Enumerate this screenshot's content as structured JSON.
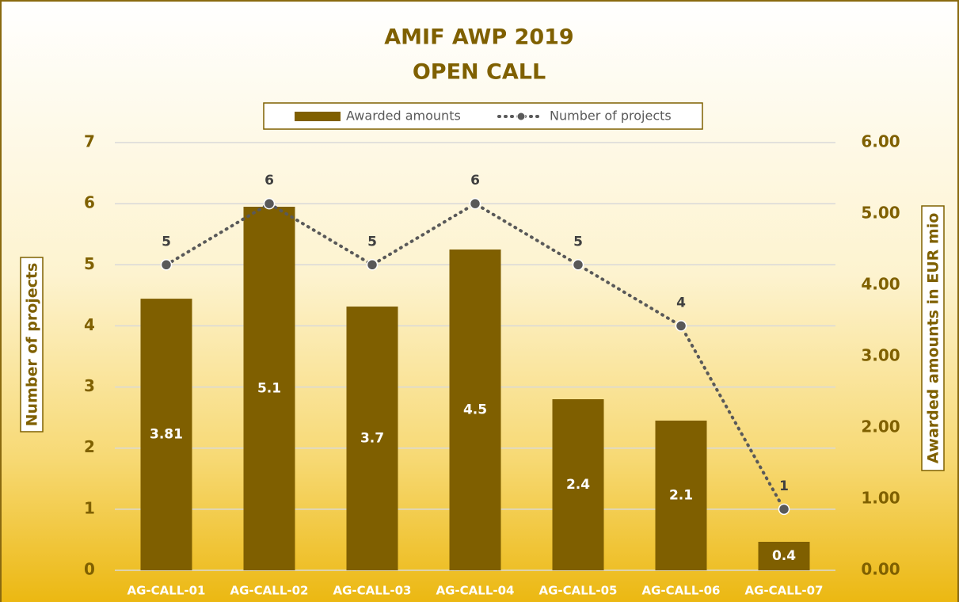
{
  "chart_data": {
    "type": "bar+line",
    "title": "AMIF AWP 2019",
    "subtitle": "OPEN CALL",
    "categories": [
      "AG-CALL-01",
      "AG-CALL-02",
      "AG-CALL-03",
      "AG-CALL-04",
      "AG-CALL-05",
      "AG-CALL-06",
      "AG-CALL-07"
    ],
    "series": [
      {
        "name": "Awarded amounts",
        "type": "bar",
        "axis": "y2",
        "color": "#7f5f00",
        "values": [
          3.81,
          5.1,
          3.7,
          4.5,
          2.4,
          2.1,
          0.4
        ]
      },
      {
        "name": "Number of projects",
        "type": "line",
        "axis": "y",
        "color": "#595959",
        "values": [
          5,
          6,
          5,
          6,
          5,
          4,
          1
        ]
      }
    ],
    "ylabel": "Number of projects",
    "y2label": "Awarded amounts in EUR mio",
    "ylim": [
      0,
      7
    ],
    "yticks": [
      0,
      1,
      2,
      3,
      4,
      5,
      6,
      7
    ],
    "y2lim": [
      0,
      6
    ],
    "y2ticks": [
      {
        "value": 0,
        "label": "0.00"
      },
      {
        "value": 1,
        "label": "1.00"
      },
      {
        "value": 2,
        "label": "2.00"
      },
      {
        "value": 3,
        "label": "3.00"
      },
      {
        "value": 4,
        "label": "4.00"
      },
      {
        "value": 5,
        "label": "5.00"
      },
      {
        "value": 6,
        "label": "6.00"
      }
    ],
    "grid": true,
    "legend": "top"
  }
}
